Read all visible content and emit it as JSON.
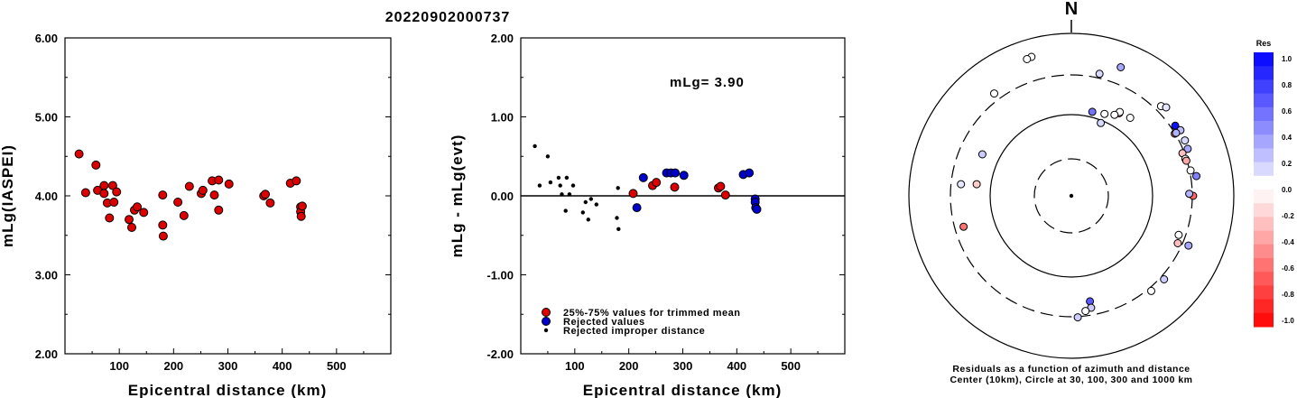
{
  "title": "20220902000737",
  "chart_data": [
    {
      "type": "scatter",
      "ylabel": "mLg(IASPEI)",
      "xlabel": "Epicentral distance (km)",
      "xlim": [
        0,
        600
      ],
      "ylim": [
        2.0,
        6.0
      ],
      "xticks": [
        "100",
        "200",
        "300",
        "400",
        "500"
      ],
      "yticks": [
        "2.00",
        "3.00",
        "4.00",
        "5.00",
        "6.00"
      ],
      "points": [
        [
          26,
          4.53
        ],
        [
          38,
          4.04
        ],
        [
          57,
          4.39
        ],
        [
          60,
          4.07
        ],
        [
          72,
          4.13
        ],
        [
          72,
          4.03
        ],
        [
          78,
          3.91
        ],
        [
          82,
          3.72
        ],
        [
          88,
          4.13
        ],
        [
          90,
          3.92
        ],
        [
          95,
          4.05
        ],
        [
          118,
          3.7
        ],
        [
          123,
          3.6
        ],
        [
          128,
          3.82
        ],
        [
          133,
          3.86
        ],
        [
          145,
          3.79
        ],
        [
          180,
          4.01
        ],
        [
          180,
          3.63
        ],
        [
          181,
          3.49
        ],
        [
          208,
          3.92
        ],
        [
          219,
          3.75
        ],
        [
          229,
          4.12
        ],
        [
          251,
          4.03
        ],
        [
          254,
          4.07
        ],
        [
          271,
          4.19
        ],
        [
          275,
          4.01
        ],
        [
          283,
          4.2
        ],
        [
          283,
          3.82
        ],
        [
          302,
          4.15
        ],
        [
          366,
          4.0
        ],
        [
          369,
          4.02
        ],
        [
          378,
          3.91
        ],
        [
          415,
          4.16
        ],
        [
          426,
          4.19
        ],
        [
          434,
          3.86
        ],
        [
          434,
          3.8
        ],
        [
          435,
          3.74
        ],
        [
          437,
          3.87
        ]
      ],
      "marker_color": "#dd0000"
    },
    {
      "type": "scatter",
      "ylabel": "mLg - mLg(evt)",
      "xlabel": "Epicentral distance (km)",
      "xlim": [
        0,
        600
      ],
      "ylim": [
        -2.0,
        2.0
      ],
      "xticks": [
        "100",
        "200",
        "300",
        "400",
        "500"
      ],
      "yticks": [
        "-2.00",
        "-1.00",
        "0.00",
        "1.00",
        "2.00"
      ],
      "annotation": "mLg= 3.90",
      "series": [
        {
          "name": "25%-75% values for trimmed mean",
          "color": "#dd0000",
          "points": [
            [
              208,
              0.03
            ],
            [
              244,
              0.13
            ],
            [
              251,
              0.17
            ],
            [
              285,
              0.11
            ],
            [
              366,
              0.1
            ],
            [
              370,
              0.12
            ],
            [
              379,
              0.01
            ]
          ]
        },
        {
          "name": "Rejected values",
          "color": "#0000cc",
          "points": [
            [
              215,
              -0.15
            ],
            [
              227,
              0.23
            ],
            [
              270,
              0.29
            ],
            [
              278,
              0.29
            ],
            [
              286,
              0.29
            ],
            [
              302,
              0.26
            ],
            [
              412,
              0.27
            ],
            [
              423,
              0.29
            ],
            [
              434,
              -0.04
            ],
            [
              434,
              -0.08
            ],
            [
              435,
              -0.15
            ],
            [
              437,
              -0.17
            ]
          ]
        },
        {
          "name": "Rejected improper distance",
          "color": "#000000",
          "points": [
            [
              26,
              0.63
            ],
            [
              35,
              0.13
            ],
            [
              50,
              0.5
            ],
            [
              55,
              0.17
            ],
            [
              70,
              0.23
            ],
            [
              73,
              0.13
            ],
            [
              76,
              0.02
            ],
            [
              83,
              -0.19
            ],
            [
              85,
              0.23
            ],
            [
              90,
              0.02
            ],
            [
              97,
              0.13
            ],
            [
              115,
              -0.21
            ],
            [
              120,
              -0.08
            ],
            [
              125,
              -0.3
            ],
            [
              130,
              -0.04
            ],
            [
              140,
              -0.11
            ],
            [
              180,
              0.1
            ],
            [
              178,
              -0.28
            ],
            [
              181,
              -0.42
            ]
          ]
        }
      ]
    },
    {
      "type": "polar-scatter",
      "north_label": "N",
      "caption_line1": "Residuals as a function of azimuth and distance",
      "caption_line2": "Center (10km), Circle at 30, 100, 300 and 1000 km",
      "colorbar_title": "Res",
      "colorbar_ticks": [
        "1.0",
        "0.8",
        "0.6",
        "0.4",
        "0.2",
        "0.0",
        "-0.2",
        "-0.4",
        "-0.6",
        "-0.8",
        "-1.0"
      ],
      "points": [
        {
          "az": 344,
          "dist": 596,
          "res": 0.0
        },
        {
          "az": 342,
          "dist": 582,
          "res": 0.0
        },
        {
          "az": 323,
          "dist": 370,
          "res": 0.0
        },
        {
          "az": 13,
          "dist": 340,
          "res": 0.15
        },
        {
          "az": 21,
          "dist": 489,
          "res": 0.35
        },
        {
          "az": 45,
          "dist": 356,
          "res": 0.0
        },
        {
          "az": 47,
          "dist": 386,
          "res": 0.1
        },
        {
          "az": 56,
          "dist": 341,
          "res": 0.95
        },
        {
          "az": 59,
          "dist": 361,
          "res": 0.25
        },
        {
          "az": 64,
          "dist": 351,
          "res": 0.15
        },
        {
          "az": 59,
          "dist": 298,
          "res": -0.55
        },
        {
          "az": 59,
          "dist": 311,
          "res": 0.3
        },
        {
          "az": 68,
          "dist": 342,
          "res": 0.35
        },
        {
          "az": 69,
          "dist": 284,
          "res": -0.25
        },
        {
          "az": 72,
          "dist": 291,
          "res": 0.0
        },
        {
          "az": 73,
          "dist": 294,
          "res": -0.35
        },
        {
          "az": 78,
          "dist": 308,
          "res": 0.0
        },
        {
          "az": 81,
          "dist": 353,
          "res": 0.5
        },
        {
          "az": 90,
          "dist": 307,
          "res": -0.6
        },
        {
          "az": 89,
          "dist": 276,
          "res": 0.3
        },
        {
          "az": 114,
          "dist": 265,
          "res": -0.25
        },
        {
          "az": 110,
          "dist": 249,
          "res": 0.0
        },
        {
          "az": 113,
          "dist": 360,
          "res": 0.35
        },
        {
          "az": 132,
          "dist": 335,
          "res": 0.2
        },
        {
          "az": 140,
          "dist": 330,
          "res": 0.0
        },
        {
          "az": 170,
          "dist": 205,
          "res": 0.65
        },
        {
          "az": 30,
          "dist": 148,
          "res": -0.45
        },
        {
          "az": 30,
          "dist": 154,
          "res": 0.0
        },
        {
          "az": 37,
          "dist": 158,
          "res": 0.0
        },
        {
          "az": 28,
          "dist": 134,
          "res": 0.0
        },
        {
          "az": 22,
          "dist": 122,
          "res": 0.0
        },
        {
          "az": 14,
          "dist": 116,
          "res": 0.55
        },
        {
          "az": 22,
          "dist": 93,
          "res": 0.15
        },
        {
          "az": 170,
          "dist": 245,
          "res": 0.2
        },
        {
          "az": 173,
          "dist": 262,
          "res": 0.0
        },
        {
          "az": 177,
          "dist": 306,
          "res": 0.2
        },
        {
          "az": 295,
          "dist": 160,
          "res": 0.2
        },
        {
          "az": 276,
          "dist": 228,
          "res": 0.1
        },
        {
          "az": 254,
          "dist": 235,
          "res": -0.55
        },
        {
          "az": 277,
          "dist": 148,
          "res": -0.2
        }
      ]
    }
  ]
}
